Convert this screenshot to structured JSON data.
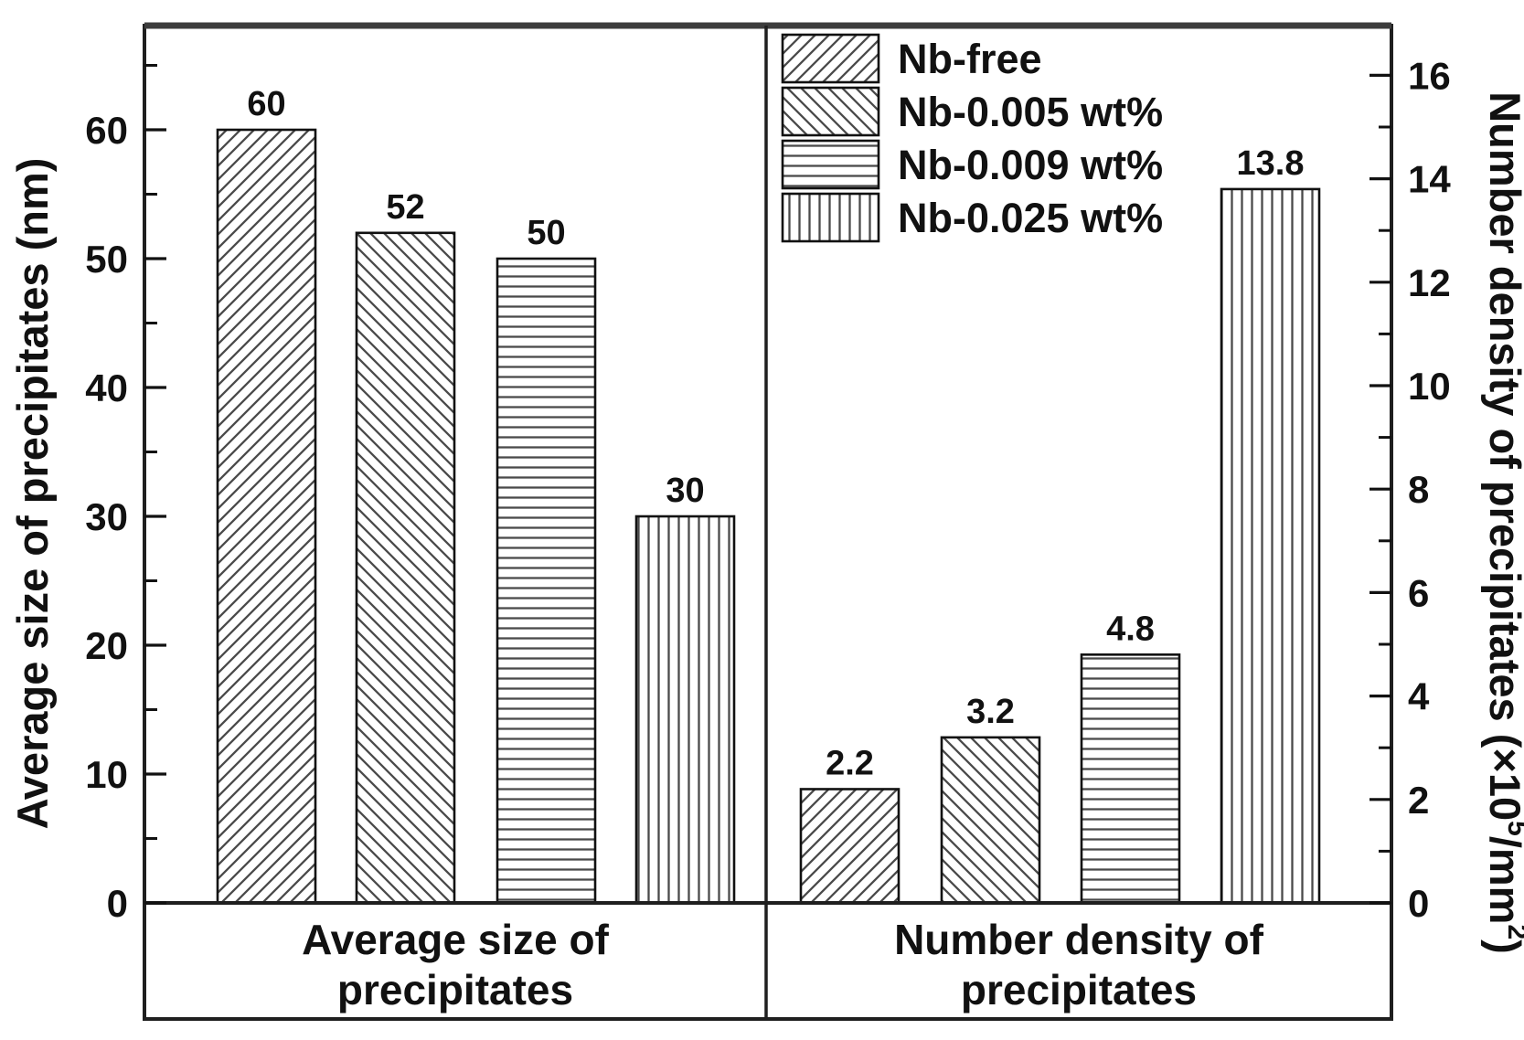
{
  "figure": {
    "background": "#ffffff",
    "ink": "#111111",
    "hatch_color": "#4a4a4a",
    "frame_color": "#1f1f1f"
  },
  "chart_data": {
    "type": "bar",
    "title": "",
    "categories": [
      {
        "lines": [
          "Average size of",
          "precipitates"
        ]
      },
      {
        "lines": [
          "Number density of",
          "precipitates"
        ]
      }
    ],
    "series": [
      {
        "name": "Nb-free",
        "pattern": "diagonal-forward",
        "values": [
          60,
          2.2
        ]
      },
      {
        "name": "Nb-0.005 wt%",
        "pattern": "diagonal-backward",
        "values": [
          52,
          3.2
        ]
      },
      {
        "name": "Nb-0.009 wt%",
        "pattern": "horizontal",
        "values": [
          50,
          4.8
        ]
      },
      {
        "name": "Nb-0.025 wt%",
        "pattern": "vertical",
        "values": [
          30,
          13.8
        ]
      }
    ],
    "left_axis": {
      "label": "Average size of precipitates (nm)",
      "min": 0,
      "max": 67,
      "major_ticks": [
        0,
        10,
        20,
        30,
        40,
        50,
        60
      ],
      "minor_step": 5
    },
    "right_axis": {
      "label": "Number density of precipitates (×10⁵/mm²)",
      "label_parts": [
        {
          "t": "Number density of precipitates (×10"
        },
        {
          "t": "5",
          "sup": true
        },
        {
          "t": "/mm"
        },
        {
          "t": "2",
          "sup": true
        },
        {
          "t": ")"
        }
      ],
      "min": 0,
      "max": 16.9,
      "major_ticks": [
        0,
        2,
        4,
        6,
        8,
        10,
        12,
        14,
        16
      ],
      "minor_step": 1
    },
    "legend": {
      "position": "top-right",
      "entries": [
        "Nb-free",
        "Nb-0.005 wt%",
        "Nb-0.009 wt%",
        "Nb-0.025 wt%"
      ]
    },
    "grid": false
  }
}
